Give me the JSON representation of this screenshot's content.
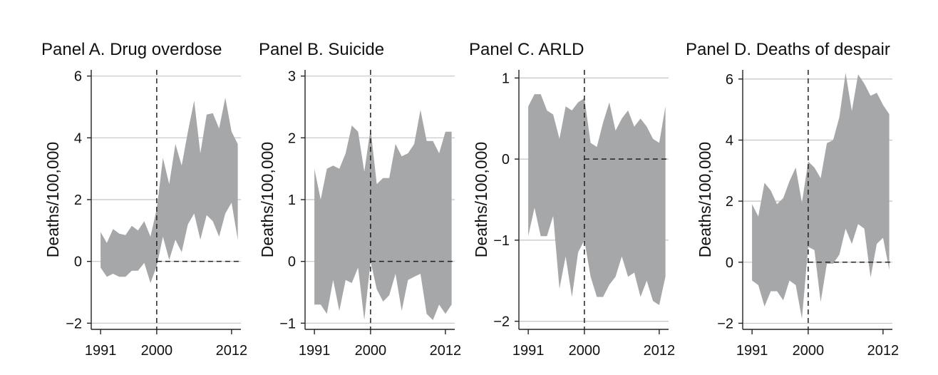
{
  "chart_data": [
    {
      "type": "area",
      "title": "Panel A. Drug overdose",
      "ylabel": "Deaths/100,000",
      "xlabel": "",
      "x_ticks": [
        1991,
        2000,
        2012
      ],
      "y_ticks": [
        -2,
        0,
        2,
        4,
        6
      ],
      "y_tick_labels": [
        "−2",
        "0",
        "2",
        "4",
        "6"
      ],
      "ylim": [
        -2.2,
        6.2
      ],
      "xlim": [
        1989.5,
        2013.5
      ],
      "grid": true,
      "reference_lines": {
        "x": 2000,
        "y": 0
      },
      "fill_color": "#a5a7a9",
      "x": [
        1991,
        1992,
        1993,
        1994,
        1995,
        1996,
        1997,
        1998,
        1999,
        2000,
        2001,
        2002,
        2003,
        2004,
        2005,
        2006,
        2007,
        2008,
        2009,
        2010,
        2011,
        2012,
        2013
      ],
      "upper": [
        0.95,
        0.6,
        1.05,
        0.9,
        0.85,
        1.15,
        1.0,
        1.3,
        0.8,
        1.7,
        3.35,
        2.5,
        3.8,
        3.1,
        4.2,
        5.2,
        3.5,
        4.75,
        4.8,
        4.3,
        5.3,
        4.2,
        3.8
      ],
      "lower": [
        -0.2,
        -0.5,
        -0.4,
        -0.5,
        -0.5,
        -0.3,
        -0.3,
        -0.05,
        -0.7,
        -0.15,
        0.8,
        0.05,
        0.7,
        0.3,
        1.2,
        1.55,
        0.7,
        1.5,
        1.3,
        0.8,
        1.55,
        1.9,
        0.7
      ]
    },
    {
      "type": "area",
      "title": "Panel B. Suicide",
      "ylabel": "Deaths/100,000",
      "xlabel": "",
      "x_ticks": [
        1991,
        2000,
        2012
      ],
      "y_ticks": [
        -1,
        0,
        1,
        2,
        3
      ],
      "y_tick_labels": [
        "−1",
        "0",
        "1",
        "2",
        "3"
      ],
      "ylim": [
        -1.1,
        3.1
      ],
      "xlim": [
        1989.5,
        2013.5
      ],
      "grid": true,
      "reference_lines": {
        "x": 2000,
        "y": 0
      },
      "fill_color": "#a5a7a9",
      "x": [
        1991,
        1992,
        1993,
        1994,
        1995,
        1996,
        1997,
        1998,
        1999,
        2000,
        2001,
        2002,
        2003,
        2004,
        2005,
        2006,
        2007,
        2008,
        2009,
        2010,
        2011,
        2012,
        2013
      ],
      "upper": [
        1.5,
        1.0,
        1.5,
        1.55,
        1.5,
        1.75,
        2.2,
        2.1,
        1.45,
        2.15,
        1.25,
        1.35,
        1.35,
        1.9,
        1.7,
        1.75,
        1.9,
        2.45,
        1.95,
        1.95,
        1.75,
        2.1,
        2.1
      ],
      "lower": [
        -0.7,
        -0.7,
        -0.85,
        -0.3,
        -0.8,
        -0.3,
        -0.35,
        -0.1,
        -0.95,
        0.0,
        -0.45,
        -0.65,
        -0.55,
        -0.2,
        -0.8,
        -0.3,
        -0.25,
        -0.2,
        -0.85,
        -0.95,
        -0.7,
        -0.85,
        -0.7
      ]
    },
    {
      "type": "area",
      "title": "Panel C. ARLD",
      "ylabel": "Deaths/100,000",
      "xlabel": "",
      "x_ticks": [
        1991,
        2000,
        2012
      ],
      "y_ticks": [
        -2,
        -1,
        0,
        1
      ],
      "y_tick_labels": [
        "−2",
        "−1",
        "0",
        "1"
      ],
      "ylim": [
        -2.1,
        1.1
      ],
      "xlim": [
        1989.5,
        2013.5
      ],
      "grid": true,
      "reference_lines": {
        "x": 2000,
        "y": 0
      },
      "fill_color": "#a5a7a9",
      "x": [
        1991,
        1992,
        1993,
        1994,
        1995,
        1996,
        1997,
        1998,
        1999,
        2000,
        2001,
        2002,
        2003,
        2004,
        2005,
        2006,
        2007,
        2008,
        2009,
        2010,
        2011,
        2012,
        2013
      ],
      "upper": [
        0.65,
        0.8,
        0.8,
        0.6,
        0.55,
        0.25,
        0.65,
        0.6,
        0.7,
        0.75,
        0.2,
        0.15,
        0.45,
        0.7,
        0.35,
        0.5,
        0.6,
        0.4,
        0.5,
        0.4,
        0.25,
        0.2,
        0.65
      ],
      "lower": [
        -0.95,
        -0.6,
        -0.95,
        -0.95,
        -0.7,
        -1.6,
        -1.2,
        -1.7,
        -1.15,
        -1.0,
        -1.45,
        -1.7,
        -1.7,
        -1.55,
        -1.45,
        -1.2,
        -1.45,
        -1.4,
        -1.7,
        -1.5,
        -1.75,
        -1.8,
        -1.45
      ]
    },
    {
      "type": "area",
      "title": "Panel D. Deaths of despair",
      "ylabel": "Deaths/100,000",
      "xlabel": "",
      "x_ticks": [
        1991,
        2000,
        2012
      ],
      "y_ticks": [
        -2,
        0,
        2,
        4,
        6
      ],
      "y_tick_labels": [
        "−2",
        "0",
        "2",
        "4",
        "6"
      ],
      "ylim": [
        -2.2,
        6.3
      ],
      "xlim": [
        1989.5,
        2013.5
      ],
      "grid": true,
      "reference_lines": {
        "x": 2000,
        "y": 0
      },
      "fill_color": "#a5a7a9",
      "x": [
        1991,
        1992,
        1993,
        1994,
        1995,
        1996,
        1997,
        1998,
        1999,
        2000,
        2001,
        2002,
        2003,
        2004,
        2005,
        2006,
        2007,
        2008,
        2009,
        2010,
        2011,
        2012,
        2013
      ],
      "upper": [
        1.9,
        1.5,
        2.6,
        2.35,
        1.9,
        2.1,
        2.65,
        3.1,
        1.95,
        3.3,
        3.1,
        2.75,
        3.9,
        4.0,
        4.75,
        6.2,
        4.95,
        6.15,
        5.85,
        5.45,
        5.55,
        5.15,
        4.85
      ],
      "lower": [
        -0.6,
        -0.75,
        -1.45,
        -0.95,
        -0.95,
        -1.25,
        -0.6,
        -0.75,
        -1.85,
        0.5,
        0.4,
        -1.3,
        -0.05,
        -0.05,
        0.25,
        1.1,
        0.6,
        1.25,
        1.1,
        -0.5,
        0.6,
        0.8,
        -0.25
      ]
    }
  ]
}
